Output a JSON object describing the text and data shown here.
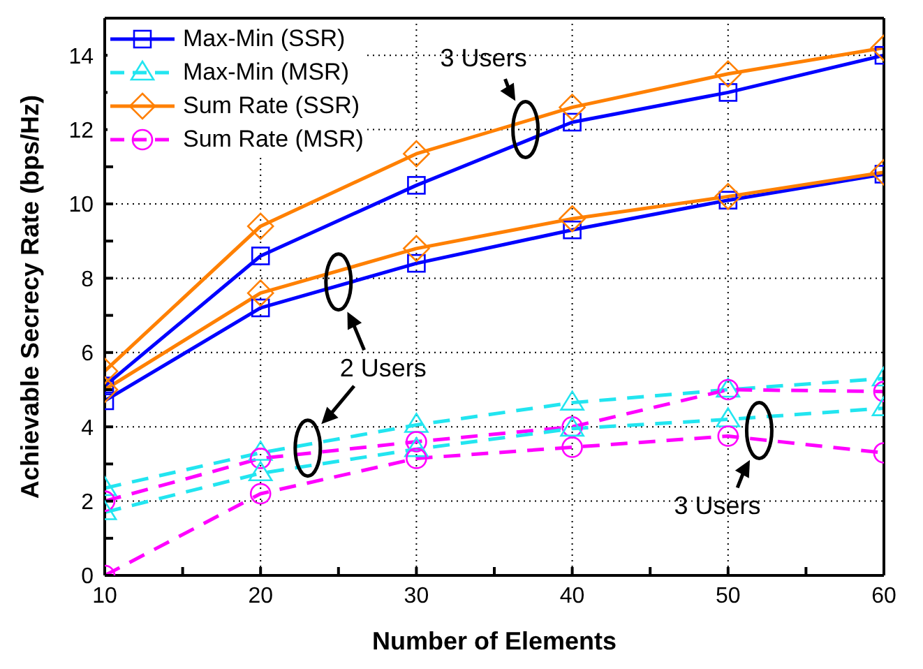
{
  "chart_data": {
    "type": "line",
    "xlabel": "Number of Elements",
    "ylabel": "Achievable Secrecy Rate (bps/Hz)",
    "x": [
      10,
      20,
      30,
      40,
      50,
      60
    ],
    "xlim": [
      10,
      60
    ],
    "xticks": [
      10,
      {
        "value": 15,
        "label": null
      },
      20,
      {
        "value": 25,
        "label": null
      },
      30,
      {
        "value": 35,
        "label": null
      },
      40,
      {
        "value": 45,
        "label": null
      },
      50,
      {
        "value": 55,
        "label": null
      },
      60
    ],
    "ylim": [
      0,
      15
    ],
    "yticks": [
      0,
      {
        "value": 1,
        "label": null
      },
      2,
      {
        "value": 3,
        "label": null
      },
      4,
      {
        "value": 5,
        "label": null
      },
      6,
      {
        "value": 7,
        "label": null
      },
      8,
      {
        "value": 9,
        "label": null
      },
      10,
      {
        "value": 11,
        "label": null
      },
      12,
      {
        "value": 13,
        "label": null
      },
      14
    ],
    "grid": true,
    "legend": "top left",
    "series": [
      {
        "name": "Max-Min (SSR)",
        "color": "#0000ff",
        "marker": "square",
        "line_style": "solid",
        "values": [
          5.1,
          8.6,
          10.5,
          12.2,
          13.0,
          14.0
        ]
      },
      {
        "name": "Max-Min (MSR)",
        "color": "#22e5f0",
        "marker": "triangle",
        "line_style": "dashed",
        "values": [
          2.35,
          3.3,
          4.05,
          4.65,
          5.0,
          5.3
        ]
      },
      {
        "name": "Sum Rate (SSR)",
        "color": "#ff8000",
        "marker": "diamond",
        "line_style": "solid",
        "values": [
          5.5,
          9.4,
          11.35,
          12.6,
          13.5,
          14.2
        ]
      },
      {
        "name": "Sum Rate (MSR)",
        "color": "#ff00ff",
        "marker": "circle",
        "line_style": "dashed",
        "values": [
          2.0,
          3.15,
          3.6,
          4.0,
          5.0,
          4.95
        ]
      },
      {
        "color": "#0000ff",
        "marker": "square",
        "line_style": "solid",
        "values": [
          4.7,
          7.2,
          8.4,
          9.3,
          10.1,
          10.8
        ]
      },
      {
        "color": "#22e5f0",
        "marker": "triangle",
        "line_style": "dashed",
        "values": [
          1.7,
          2.75,
          3.4,
          3.95,
          4.2,
          4.5
        ]
      },
      {
        "color": "#ff8000",
        "marker": "diamond",
        "line_style": "solid",
        "values": [
          5.0,
          7.6,
          8.8,
          9.6,
          10.2,
          10.85
        ]
      },
      {
        "color": "#ff00ff",
        "marker": "circle",
        "line_style": "dashed",
        "values": [
          0,
          2.2,
          3.15,
          3.45,
          3.75,
          3.3
        ]
      }
    ],
    "annotations": [
      {
        "text": "3 Users",
        "x": 37,
        "y": 12
      },
      {
        "text": "2 Users",
        "x": 25,
        "y": 7.9
      },
      {
        "text": "3 Users",
        "x": 52,
        "y": 3.9
      }
    ]
  }
}
